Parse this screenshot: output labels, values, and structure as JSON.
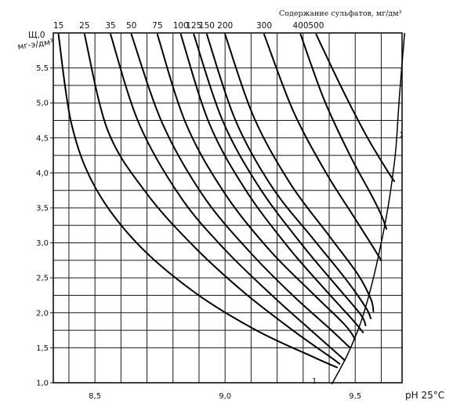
{
  "chart_data": {
    "type": "line",
    "title": "Содержание сульфатов, мг/дм³",
    "ylabel_line1": "Щ,0",
    "ylabel_line2": "мг-э/дм³",
    "xlabel": "pH 25°C",
    "xlim": [
      8.34,
      9.68
    ],
    "ylim": [
      1.0,
      6.0
    ],
    "grid": true,
    "x_ticks": [
      {
        "value": 8.5,
        "label": "8,5"
      },
      {
        "value": 9.0,
        "label": "9,0"
      },
      {
        "value": 9.5,
        "label": "9,5"
      }
    ],
    "y_ticks": [
      {
        "value": 1.0,
        "label": "1,0"
      },
      {
        "value": 1.5,
        "label": "1,5"
      },
      {
        "value": 2.0,
        "label": "2,0"
      },
      {
        "value": 2.5,
        "label": "2,5"
      },
      {
        "value": 3.0,
        "label": "3,0"
      },
      {
        "value": 3.5,
        "label": "3,5"
      },
      {
        "value": 4.0,
        "label": "4,0"
      },
      {
        "value": 4.5,
        "label": "4,5"
      },
      {
        "value": 5.0,
        "label": "5,0"
      },
      {
        "value": 5.5,
        "label": "5,5"
      }
    ],
    "annotations": [
      "1",
      "1"
    ],
    "series": [
      {
        "label": "15",
        "points": [
          [
            8.36,
            5.98
          ],
          [
            8.41,
            4.7
          ],
          [
            8.5,
            3.8
          ],
          [
            8.66,
            3.0
          ],
          [
            8.88,
            2.3
          ],
          [
            9.12,
            1.75
          ],
          [
            9.35,
            1.35
          ],
          [
            9.43,
            1.22
          ]
        ]
      },
      {
        "label": "25",
        "points": [
          [
            8.46,
            5.98
          ],
          [
            8.55,
            4.6
          ],
          [
            8.7,
            3.7
          ],
          [
            8.88,
            2.95
          ],
          [
            9.07,
            2.3
          ],
          [
            9.26,
            1.75
          ],
          [
            9.4,
            1.38
          ],
          [
            9.44,
            1.27
          ]
        ]
      },
      {
        "label": "35",
        "points": [
          [
            8.56,
            5.98
          ],
          [
            8.67,
            4.7
          ],
          [
            8.83,
            3.65
          ],
          [
            9.0,
            2.9
          ],
          [
            9.18,
            2.25
          ],
          [
            9.33,
            1.75
          ],
          [
            9.43,
            1.42
          ],
          [
            9.46,
            1.32
          ]
        ]
      },
      {
        "label": "50",
        "points": [
          [
            8.64,
            5.98
          ],
          [
            8.76,
            4.7
          ],
          [
            8.92,
            3.65
          ],
          [
            9.1,
            2.85
          ],
          [
            9.26,
            2.25
          ],
          [
            9.4,
            1.78
          ],
          [
            9.48,
            1.5
          ]
        ]
      },
      {
        "label": "75",
        "points": [
          [
            8.74,
            5.98
          ],
          [
            8.85,
            4.7
          ],
          [
            9.0,
            3.7
          ],
          [
            9.17,
            2.9
          ],
          [
            9.33,
            2.3
          ],
          [
            9.46,
            1.83
          ],
          [
            9.5,
            1.62
          ]
        ]
      },
      {
        "label": "100",
        "points": [
          [
            8.83,
            5.98
          ],
          [
            8.94,
            4.7
          ],
          [
            9.08,
            3.75
          ],
          [
            9.24,
            2.95
          ],
          [
            9.38,
            2.35
          ],
          [
            9.49,
            1.9
          ],
          [
            9.53,
            1.72
          ]
        ]
      },
      {
        "label": "125",
        "points": [
          [
            8.88,
            5.98
          ],
          [
            8.99,
            4.75
          ],
          [
            9.13,
            3.8
          ],
          [
            9.29,
            3.0
          ],
          [
            9.42,
            2.42
          ],
          [
            9.52,
            1.98
          ],
          [
            9.54,
            1.82
          ]
        ]
      },
      {
        "label": "150",
        "points": [
          [
            8.93,
            5.98
          ],
          [
            9.04,
            4.75
          ],
          [
            9.18,
            3.8
          ],
          [
            9.34,
            3.05
          ],
          [
            9.46,
            2.5
          ],
          [
            9.54,
            2.08
          ],
          [
            9.56,
            1.92
          ]
        ]
      },
      {
        "label": "200",
        "points": [
          [
            9.0,
            5.98
          ],
          [
            9.11,
            4.8
          ],
          [
            9.25,
            3.85
          ],
          [
            9.4,
            3.1
          ],
          [
            9.51,
            2.55
          ],
          [
            9.56,
            2.2
          ],
          [
            9.57,
            2.02
          ]
        ]
      },
      {
        "label": "300",
        "points": [
          [
            9.15,
            5.98
          ],
          [
            9.26,
            4.9
          ],
          [
            9.38,
            4.05
          ],
          [
            9.49,
            3.4
          ],
          [
            9.55,
            3.05
          ],
          [
            9.6,
            2.75
          ]
        ]
      },
      {
        "label": "400",
        "points": [
          [
            9.29,
            5.98
          ],
          [
            9.38,
            5.05
          ],
          [
            9.48,
            4.25
          ],
          [
            9.56,
            3.7
          ],
          [
            9.6,
            3.4
          ],
          [
            9.62,
            3.2
          ]
        ]
      },
      {
        "label": "500",
        "points": [
          [
            9.35,
            5.98
          ],
          [
            9.45,
            5.2
          ],
          [
            9.54,
            4.55
          ],
          [
            9.62,
            4.05
          ],
          [
            9.65,
            3.88
          ]
        ]
      }
    ],
    "boundary": {
      "points": [
        [
          9.41,
          0.98
        ],
        [
          9.47,
          1.4
        ],
        [
          9.52,
          1.85
        ],
        [
          9.56,
          2.35
        ],
        [
          9.6,
          3.0
        ],
        [
          9.63,
          3.6
        ],
        [
          9.655,
          4.3
        ],
        [
          9.67,
          5.1
        ],
        [
          9.69,
          6.0
        ]
      ]
    }
  }
}
